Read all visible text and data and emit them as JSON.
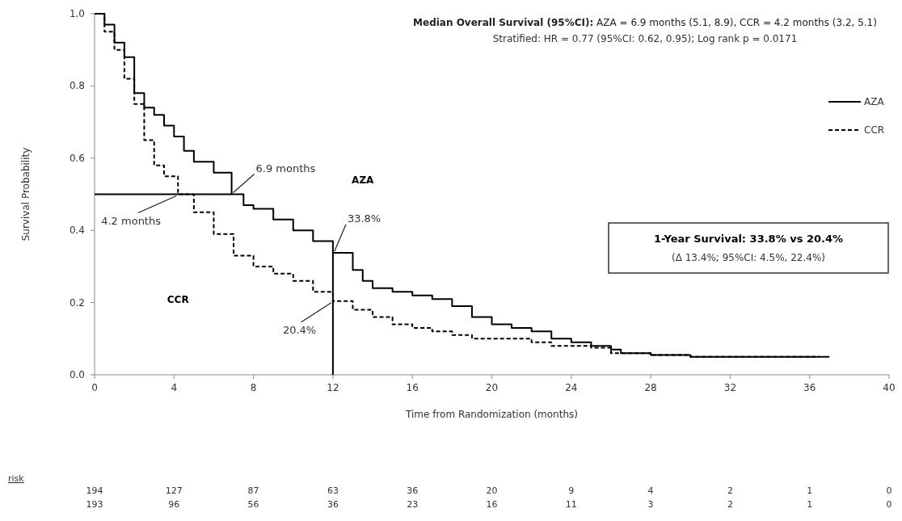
{
  "chart_data": {
    "type": "step",
    "title": "Median Overall Survival (95%CI): AZA = 6.9 months (5.1, 8.9), CCR = 4.2 months (3.2, 5.1)",
    "subtitle": "Stratified: HR = 0.77 (95%CI: 0.62, 0.95); Log rank p = 0.0171",
    "xlabel": "Time from Randomization (months)",
    "ylabel": "Survival Probability",
    "xlim": [
      0,
      40
    ],
    "xticks": [
      0,
      4,
      8,
      12,
      16,
      20,
      24,
      28,
      32,
      36,
      40
    ],
    "ylim": [
      0,
      1
    ],
    "yticks": [
      {
        "value": 0,
        "label": "0.0"
      },
      {
        "value": 0.2,
        "label": "0.2"
      },
      {
        "value": 0.4,
        "label": "0.4"
      },
      {
        "value": 0.6,
        "label": "0.6"
      },
      {
        "value": 0.8,
        "label": "0.8"
      },
      {
        "value": 1,
        "label": "1.0"
      }
    ],
    "grid": false,
    "legend": "top right",
    "series": [
      {
        "name": "AZA",
        "color": "#000000",
        "line_style": "solid",
        "x": [
          0,
          0.5,
          1,
          1.5,
          2,
          2.5,
          3,
          3.5,
          4,
          4.5,
          5,
          6,
          6.9,
          7.5,
          8,
          9,
          10,
          11,
          12,
          13,
          13.5,
          14,
          15,
          16,
          17,
          18,
          19,
          20,
          21,
          22,
          23,
          24,
          25,
          26,
          26.5,
          28,
          30,
          32,
          34,
          37
        ],
        "values": [
          1,
          0.97,
          0.92,
          0.88,
          0.78,
          0.74,
          0.72,
          0.69,
          0.66,
          0.62,
          0.59,
          0.56,
          0.5,
          0.47,
          0.46,
          0.43,
          0.4,
          0.37,
          0.338,
          0.29,
          0.26,
          0.24,
          0.23,
          0.22,
          0.21,
          0.19,
          0.16,
          0.14,
          0.13,
          0.12,
          0.1,
          0.09,
          0.08,
          0.07,
          0.06,
          0.055,
          0.05,
          0.05,
          0.05,
          0.05
        ]
      },
      {
        "name": "CCR",
        "color": "#000000",
        "line_style": "dashed",
        "x": [
          0,
          0.5,
          1,
          1.5,
          2,
          2.5,
          3,
          3.5,
          4.2,
          5,
          6,
          7,
          8,
          9,
          10,
          11,
          12,
          13,
          14,
          15,
          16,
          17,
          18,
          19,
          20,
          22,
          23,
          24,
          25,
          26,
          28,
          30,
          32,
          34,
          36.5
        ],
        "values": [
          1,
          0.95,
          0.9,
          0.82,
          0.75,
          0.65,
          0.58,
          0.55,
          0.5,
          0.45,
          0.39,
          0.33,
          0.3,
          0.28,
          0.26,
          0.23,
          0.204,
          0.18,
          0.16,
          0.14,
          0.13,
          0.12,
          0.11,
          0.1,
          0.1,
          0.09,
          0.08,
          0.08,
          0.075,
          0.06,
          0.055,
          0.05,
          0.05,
          0.05,
          0.05
        ]
      },
      {
        "type": "line",
        "color": "#000000",
        "line_style": "solid",
        "x": [
          0,
          6.9
        ],
        "values": [
          0.5,
          0.5
        ]
      },
      {
        "type": "line",
        "color": "#000000",
        "line_style": "solid",
        "x": [
          12,
          12
        ],
        "values": [
          0,
          0.338
        ]
      }
    ],
    "annotations": [
      {
        "text": "6.9 months",
        "x": 6.9,
        "y": 0.5
      },
      {
        "text": "4.2 months",
        "x": 4.2,
        "y": 0.5
      },
      {
        "text": "33.8%",
        "x": 12,
        "y": 0.338
      },
      {
        "text": "20.4%",
        "x": 12,
        "y": 0.204
      },
      "AZA",
      "CCR",
      "1-Year Survival: 33.8% vs 20.4%",
      "(Δ 13.4%; 95%CI: 4.5%, 22.4%)",
      "risk",
      "194 127 87 63 36 20 9 4 2 1 0",
      "193 96 56 36 23 16 11 3 2 1 0"
    ]
  }
}
